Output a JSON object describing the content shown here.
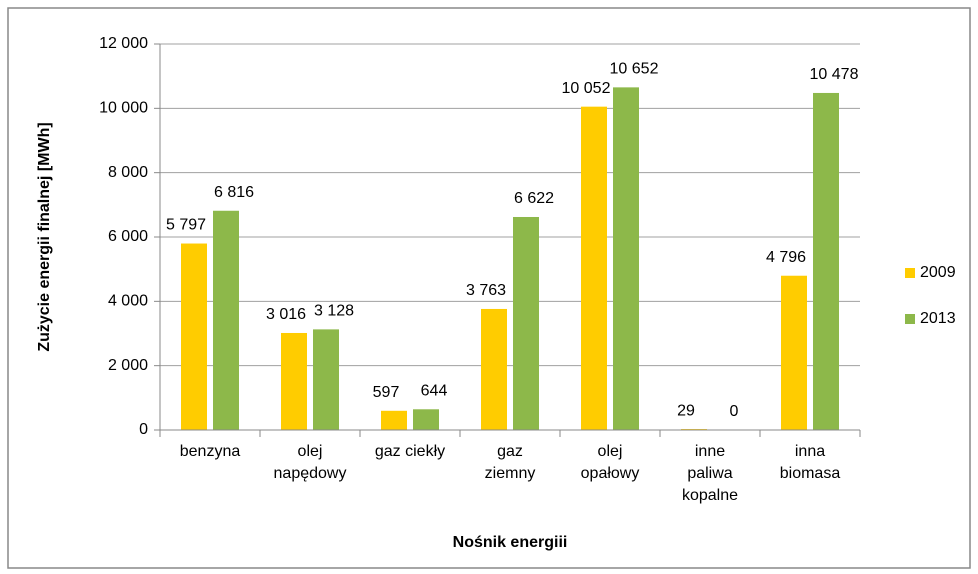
{
  "chart_data": {
    "type": "bar",
    "categories": [
      [
        "benzyna"
      ],
      [
        "olej",
        "napędowy"
      ],
      [
        "gaz ciekły"
      ],
      [
        "gaz",
        "ziemny"
      ],
      [
        "olej",
        "opałowy"
      ],
      [
        "inne",
        "paliwa",
        "kopalne"
      ],
      [
        "inna",
        "biomasa"
      ]
    ],
    "series": [
      {
        "name": "2009",
        "color": "#ffcc00",
        "values": [
          5797,
          3016,
          597,
          3763,
          10052,
          29,
          4796
        ],
        "value_labels": [
          "5 797",
          "3 016",
          "597",
          "3 763",
          "10 052",
          "29",
          "4 796"
        ]
      },
      {
        "name": "2013",
        "color": "#8db84a",
        "values": [
          6816,
          3128,
          644,
          6622,
          10652,
          0,
          10478
        ],
        "value_labels": [
          "6 816",
          "3 128",
          "644",
          "6 622",
          "10 652",
          "0",
          "10 478"
        ]
      }
    ],
    "ylim": [
      0,
      12000
    ],
    "yticks": [
      0,
      {
        "value": 2000,
        "label": "2 000"
      },
      {
        "value": 4000,
        "label": "4 000"
      },
      {
        "value": 6000,
        "label": "6 000"
      },
      {
        "value": 8000,
        "label": "8 000"
      },
      {
        "value": 10000,
        "label": "10 000"
      },
      {
        "value": 12000,
        "label": "12 000"
      }
    ],
    "xlabel": "Nośnik energiii",
    "ylabel": "Zużycie energii finalnej  [MWh]",
    "grid": true,
    "legend": "right"
  }
}
